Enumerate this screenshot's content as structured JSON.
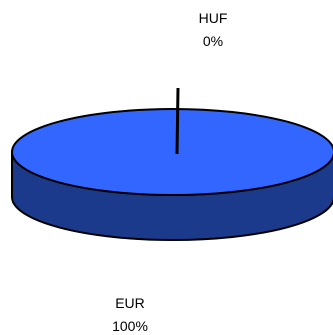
{
  "chart_data": {
    "type": "pie",
    "style": "3d",
    "slices": [
      {
        "name": "EUR",
        "value": 100,
        "label_pct": "100%",
        "color": "#3366ff",
        "side_color": "#1c3a8c"
      },
      {
        "name": "HUF",
        "value": 0,
        "label_pct": "0%",
        "color": "#000000"
      }
    ],
    "legend": "none",
    "outline_color": "#000000"
  }
}
